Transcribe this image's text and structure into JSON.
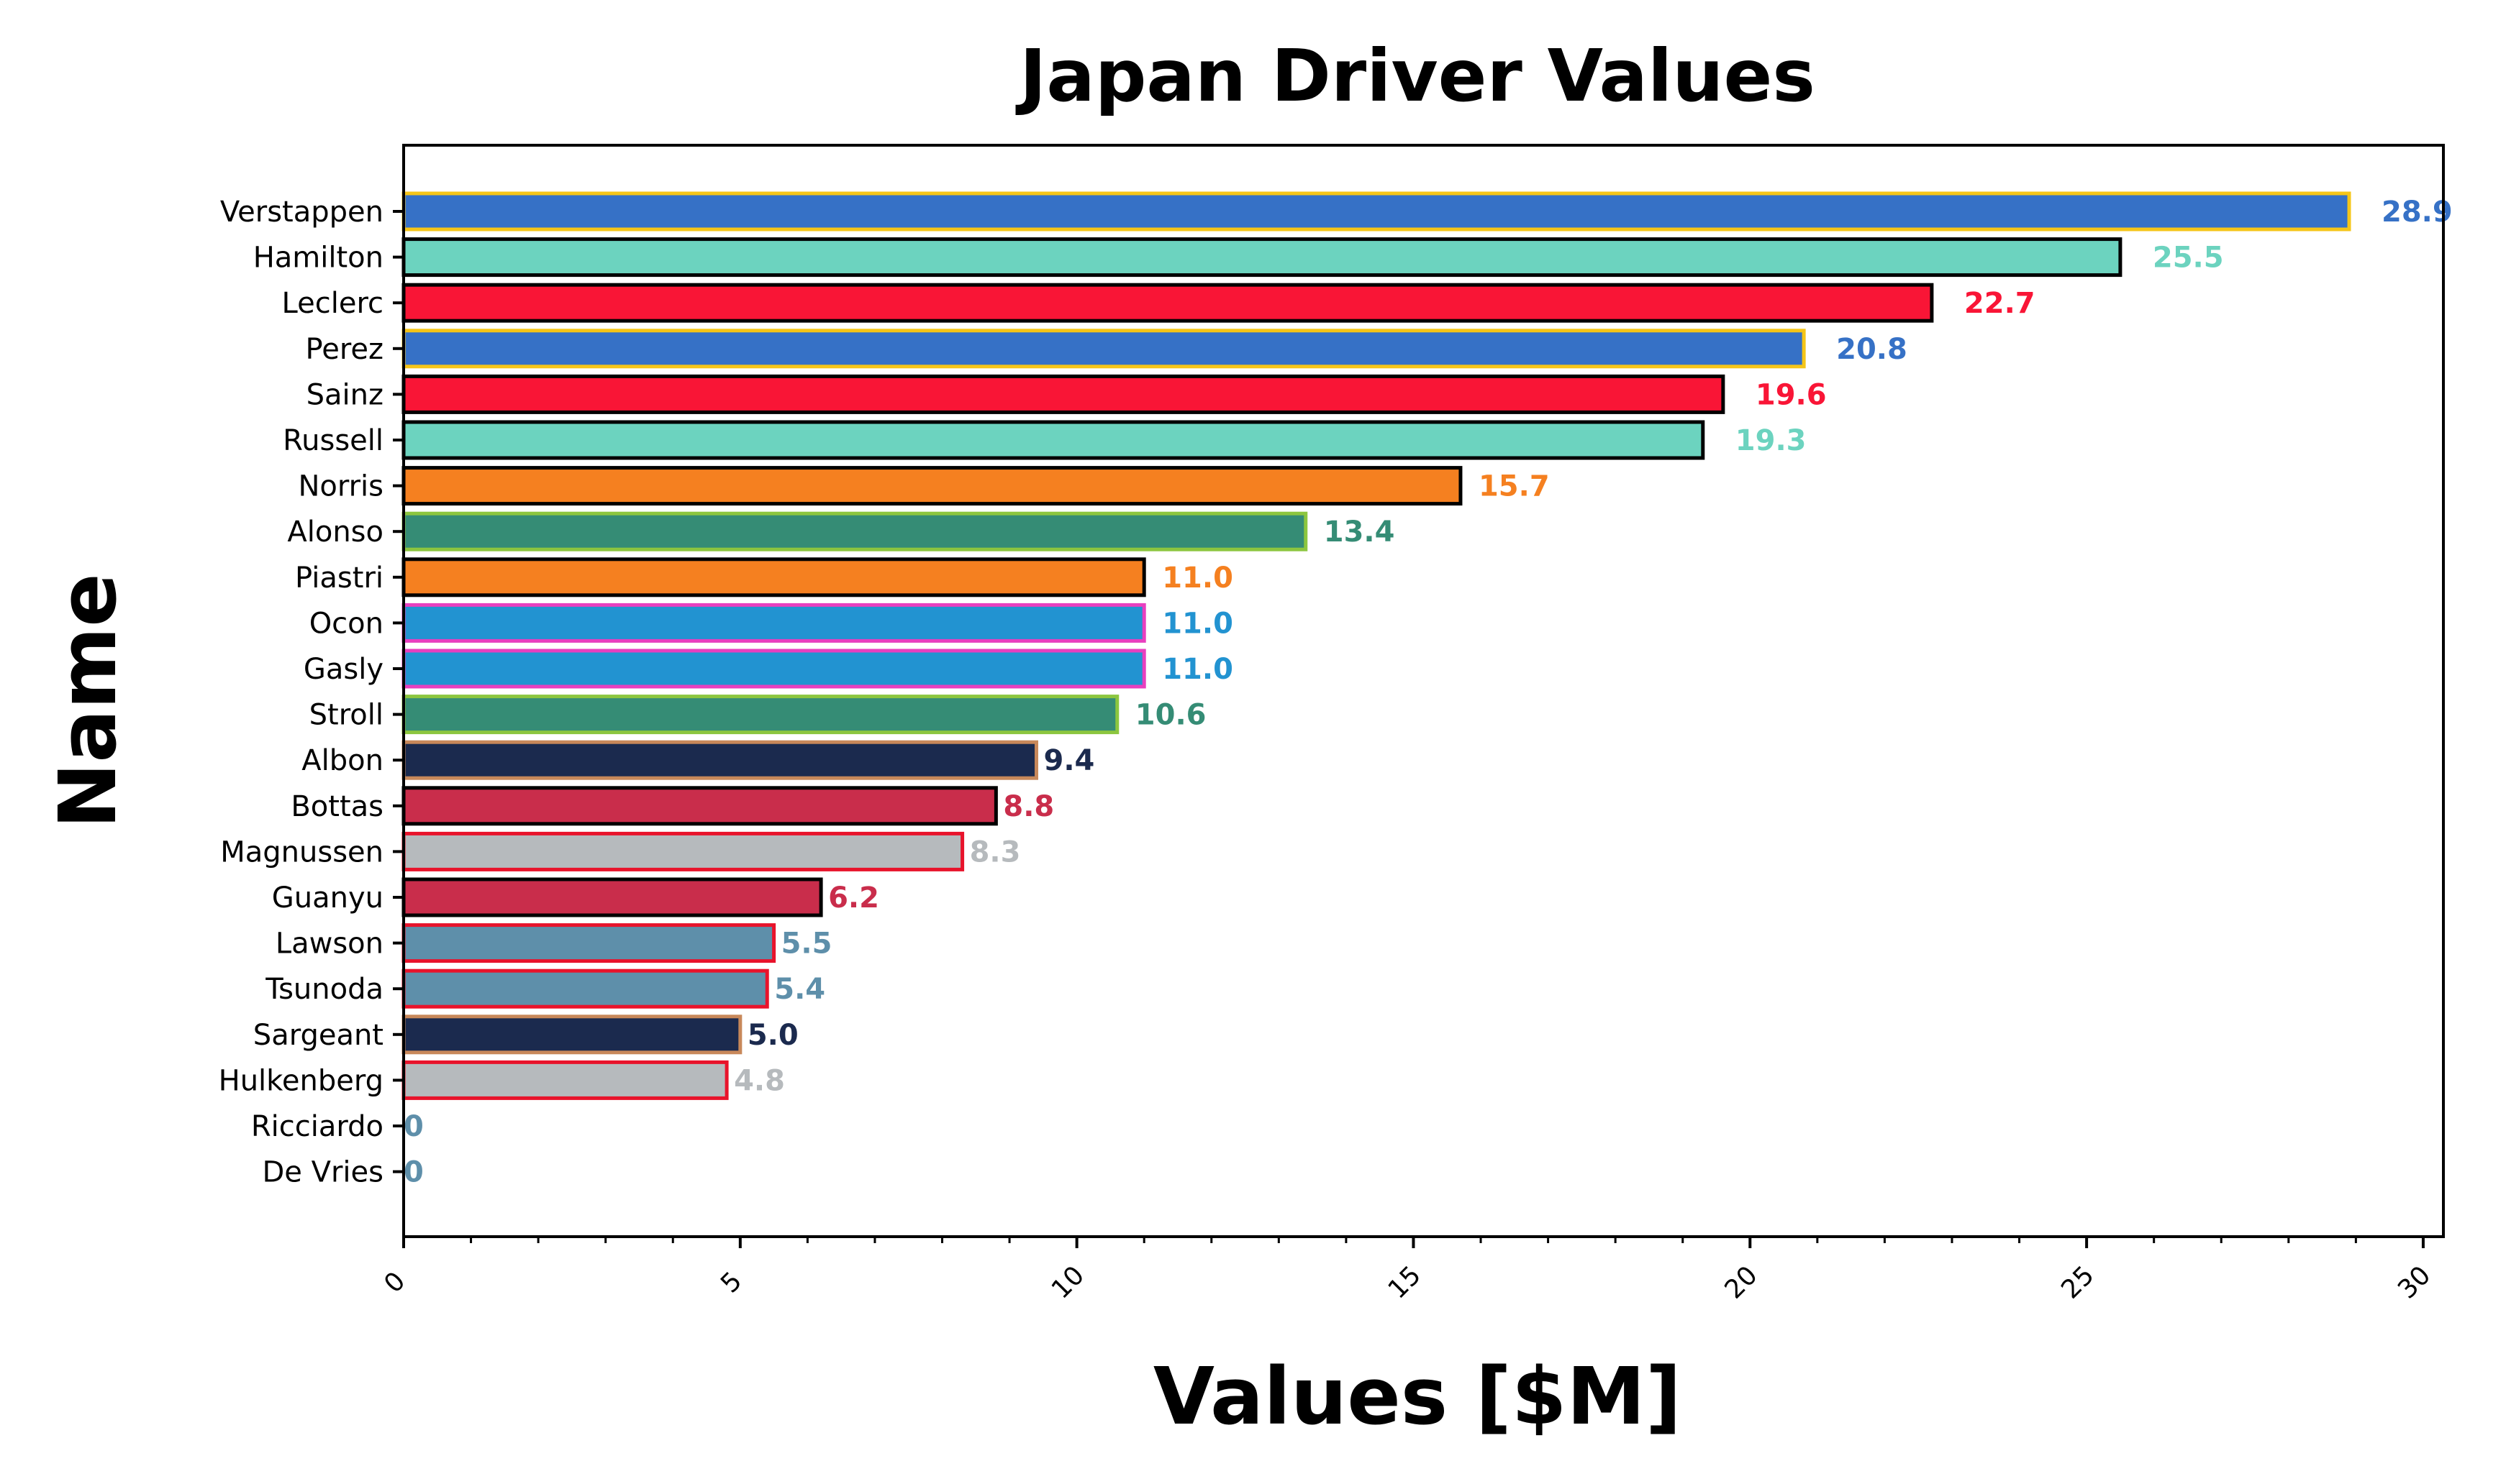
{
  "chart_data": {
    "type": "bar",
    "orientation": "horizontal",
    "title": "Japan Driver Values",
    "xlabel": "Values [$M]",
    "ylabel": "Name",
    "xlim": [
      0,
      30.3
    ],
    "xticks": [
      "0",
      "5",
      "10",
      "15",
      "20",
      "25",
      "30"
    ],
    "grid": false,
    "legend": "none",
    "categories": [
      "Verstappen",
      "Hamilton",
      "Leclerc",
      "Perez",
      "Sainz",
      "Russell",
      "Norris",
      "Alonso",
      "Piastri",
      "Ocon",
      "Gasly",
      "Stroll",
      "Albon",
      "Bottas",
      "Magnussen",
      "Guanyu",
      "Lawson",
      "Tsunoda",
      "Sargeant",
      "Hulkenberg",
      "Ricciardo",
      "De Vries"
    ],
    "values": [
      28.9,
      25.5,
      22.7,
      20.8,
      19.6,
      19.3,
      15.7,
      13.4,
      11.0,
      11.0,
      11.0,
      10.6,
      9.4,
      8.8,
      8.3,
      6.2,
      5.5,
      5.4,
      5.0,
      4.8,
      0,
      0
    ],
    "value_labels": [
      "28.9",
      "25.5",
      "22.7",
      "20.8",
      "19.6",
      "19.3",
      "15.7",
      "13.4",
      "11.0",
      "11.0",
      "11.0",
      "10.6",
      "9.4",
      "8.8",
      "8.3",
      "6.2",
      "5.5",
      "5.4",
      "5.0",
      "4.8",
      "0",
      "0"
    ],
    "bar_colors": [
      "#3671C6",
      "#6CD3BF",
      "#F91536",
      "#3671C6",
      "#F91536",
      "#6CD3BF",
      "#F58020",
      "#358C75",
      "#F58020",
      "#2293D1",
      "#2293D1",
      "#358C75",
      "#1B2A4E",
      "#C92D4B",
      "#B6BABD",
      "#C92D4B",
      "#5E8FAA",
      "#5E8FAA",
      "#1B2A4E",
      "#B6BABD",
      "#5E8FAA",
      "#5E8FAA"
    ],
    "edge_colors": [
      "#F5C518",
      "#000000",
      "#000000",
      "#F5C518",
      "#000000",
      "#000000",
      "#000000",
      "#8CC63F",
      "#000000",
      "#E83FBF",
      "#E83FBF",
      "#8CC63F",
      "#C8885A",
      "#000000",
      "#E8132B",
      "#000000",
      "#E8132B",
      "#E8132B",
      "#C8885A",
      "#E8132B",
      "#E8132B",
      "#E8132B"
    ]
  }
}
